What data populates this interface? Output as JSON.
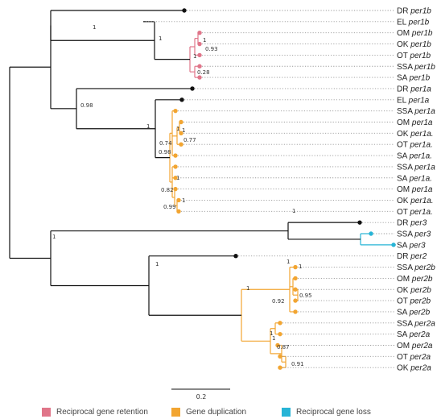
{
  "colors": {
    "branch": "#111111",
    "retention": "#e07589",
    "duplication": "#f2a531",
    "loss": "#27b4d6",
    "dotted_guide": "#999999"
  },
  "leaves": [
    {
      "species": "DR",
      "gene": "per1b",
      "node": "black"
    },
    {
      "species": "EL",
      "gene": "per1b",
      "node": "none"
    },
    {
      "species": "OM",
      "gene": "per1b",
      "node": "retention"
    },
    {
      "species": "OK",
      "gene": "per1b",
      "node": "retention"
    },
    {
      "species": "OT",
      "gene": "per1b",
      "node": "retention"
    },
    {
      "species": "SSA",
      "gene": "per1b",
      "node": "retention"
    },
    {
      "species": "SA",
      "gene": "per1b",
      "node": "retention"
    },
    {
      "species": "DR",
      "gene": "per1a",
      "node": "black"
    },
    {
      "species": "EL",
      "gene": "per1a",
      "node": "black"
    },
    {
      "species": "SSA",
      "gene": "per1a",
      "node": "duplication"
    },
    {
      "species": "OM",
      "gene": "per1a",
      "node": "duplication"
    },
    {
      "species": "OK",
      "gene": "per1a.",
      "node": "duplication"
    },
    {
      "species": "OT",
      "gene": "per1a.",
      "node": "duplication"
    },
    {
      "species": "SA",
      "gene": "per1a.",
      "node": "duplication"
    },
    {
      "species": "SSA",
      "gene": "per1a",
      "node": "duplication"
    },
    {
      "species": "SA",
      "gene": "per1a.",
      "node": "duplication"
    },
    {
      "species": "OM",
      "gene": "per1a",
      "node": "duplication"
    },
    {
      "species": "OK",
      "gene": "per1a.",
      "node": "duplication"
    },
    {
      "species": "OT",
      "gene": "per1a.",
      "node": "duplication"
    },
    {
      "species": "DR",
      "gene": "per3",
      "node": "black"
    },
    {
      "species": "SSA",
      "gene": "per3",
      "node": "loss"
    },
    {
      "species": "SA",
      "gene": "per3",
      "node": "loss"
    },
    {
      "species": "DR",
      "gene": "per2",
      "node": "black"
    },
    {
      "species": "SSA",
      "gene": "per2b",
      "node": "duplication"
    },
    {
      "species": "OM",
      "gene": "per2b",
      "node": "duplication"
    },
    {
      "species": "OK",
      "gene": "per2b",
      "node": "duplication"
    },
    {
      "species": "OT",
      "gene": "per2b",
      "node": "duplication"
    },
    {
      "species": "SA",
      "gene": "per2b",
      "node": "duplication"
    },
    {
      "species": "SSA",
      "gene": "per2a",
      "node": "duplication"
    },
    {
      "species": "SA",
      "gene": "per2a",
      "node": "duplication"
    },
    {
      "species": "OM",
      "gene": "per2a",
      "node": "duplication"
    },
    {
      "species": "OT",
      "gene": "per2a",
      "node": "duplication"
    },
    {
      "species": "OK",
      "gene": "per2a",
      "node": "duplication"
    }
  ],
  "support_values": [
    "1",
    "1",
    "1",
    "0.93",
    "1",
    "0.28",
    "0.98",
    "1",
    "1",
    "1",
    "0.77",
    "0.74",
    "0.98",
    "1",
    "0.82",
    "1",
    "0.99",
    "1",
    "1",
    "1",
    "1",
    "1",
    "1",
    "0.95",
    "0.92",
    "1",
    "1",
    "0.87",
    "0.91"
  ],
  "scale_bar": {
    "label": "0.2"
  },
  "legend": [
    {
      "label": "Reciprocal gene retention",
      "color_key": "retention"
    },
    {
      "label": "Gene duplication",
      "color_key": "duplication"
    },
    {
      "label": "Reciprocal gene loss",
      "color_key": "loss"
    }
  ]
}
